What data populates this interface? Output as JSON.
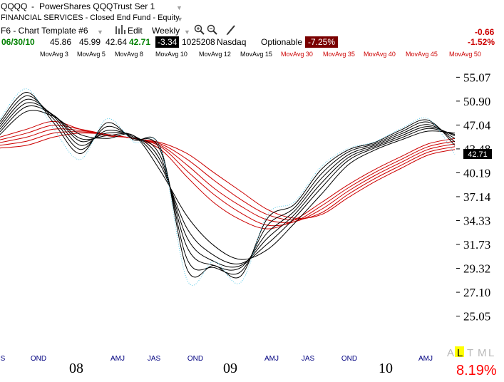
{
  "header": {
    "symbol": "QQQQ",
    "name_sep": "-",
    "name": "PowerShares QQQTrust Ser 1",
    "sector": "FINANCIAL SERVICES - Closed End Fund - Equity",
    "template": "F6 - Chart Template #6",
    "edit_label": "Edit",
    "period_label": "Weekly",
    "date": "06/30/10",
    "open": "45.86",
    "high": "45.99",
    "low": "42.64",
    "close": "42.71",
    "change": "-3.34",
    "volume": "1025208",
    "exchange": "Nasdaq",
    "optionable": "Optionable",
    "pct_badge": "-7.25%",
    "net_change": "-0.66",
    "net_pct": "-1.52%"
  },
  "moving_averages": [
    {
      "label": "MovAvg 3",
      "color": "#000000"
    },
    {
      "label": "MovAvg 5",
      "color": "#000000"
    },
    {
      "label": "MovAvg 8",
      "color": "#000000"
    },
    {
      "label": "MovAvg 10",
      "color": "#000000"
    },
    {
      "label": "MovAvg 12",
      "color": "#000000"
    },
    {
      "label": "MovAvg 15",
      "color": "#000000"
    },
    {
      "label": "MovAvg 30",
      "color": "#cc0000"
    },
    {
      "label": "MovAvg 35",
      "color": "#cc0000"
    },
    {
      "label": "MovAvg 40",
      "color": "#cc0000"
    },
    {
      "label": "MovAvg 45",
      "color": "#cc0000"
    },
    {
      "label": "MovAvg 50",
      "color": "#cc0000"
    }
  ],
  "footer": {
    "letters": [
      "A",
      "L",
      "T",
      "M",
      "L"
    ],
    "highlight_index": 1,
    "percent": "8.19%"
  },
  "chart_data": {
    "type": "line",
    "price_label": "42.71",
    "y_ticks": [
      "55.07",
      "50.90",
      "47.04",
      "43.48",
      "40.19",
      "37.14",
      "34.33",
      "31.73",
      "29.32",
      "27.10",
      "25.05"
    ],
    "y_scale": "log",
    "ylim": [
      24.1,
      57.5
    ],
    "x_ticks": [
      "S",
      "OND",
      "AMJ",
      "JAS",
      "OND",
      "AMJ",
      "JAS",
      "OND",
      "AMJ"
    ],
    "x_years": [
      "08",
      "09",
      "10"
    ],
    "x": [
      "2007-09",
      "2007-11",
      "2008-01",
      "2008-03",
      "2008-05",
      "2008-07",
      "2008-09",
      "2008-11",
      "2009-01",
      "2009-03",
      "2009-05",
      "2009-07",
      "2009-09",
      "2009-11",
      "2010-01",
      "2010-03",
      "2010-05",
      "2010-06"
    ],
    "price": [
      48.0,
      53.0,
      46.5,
      42.0,
      48.0,
      44.5,
      43.5,
      28.2,
      30.0,
      28.0,
      35.0,
      36.5,
      41.0,
      43.5,
      44.5,
      46.5,
      48.0,
      42.71
    ],
    "series": [
      {
        "name": "MovAvg 3",
        "values": [
          47.6,
          52.4,
          47.4,
          42.8,
          47.4,
          44.8,
          43.6,
          29.2,
          29.6,
          28.6,
          34.6,
          36.2,
          40.6,
          43.3,
          44.4,
          46.3,
          47.8,
          44.0
        ]
      },
      {
        "name": "MovAvg 5",
        "values": [
          47.2,
          51.8,
          48.0,
          43.4,
          46.8,
          45.0,
          43.2,
          30.2,
          29.4,
          29.0,
          33.8,
          35.8,
          40.0,
          43.0,
          44.2,
          46.0,
          47.5,
          44.5
        ]
      },
      {
        "name": "MovAvg 8",
        "values": [
          46.8,
          51.2,
          48.4,
          44.0,
          46.2,
          45.2,
          42.4,
          31.4,
          29.6,
          29.4,
          33.0,
          35.4,
          39.4,
          42.6,
          44.0,
          45.7,
          47.1,
          45.0
        ]
      },
      {
        "name": "MovAvg 10",
        "values": [
          46.4,
          50.6,
          48.6,
          44.6,
          45.8,
          45.4,
          41.8,
          32.4,
          30.0,
          29.6,
          32.4,
          35.0,
          38.8,
          42.2,
          43.8,
          45.4,
          46.8,
          45.4
        ]
      },
      {
        "name": "MovAvg 12",
        "values": [
          46.0,
          50.0,
          48.6,
          45.0,
          45.4,
          45.4,
          41.2,
          33.4,
          30.6,
          29.8,
          31.8,
          34.6,
          38.2,
          41.8,
          43.6,
          45.1,
          46.5,
          45.6
        ]
      },
      {
        "name": "MovAvg 15",
        "values": [
          45.6,
          49.2,
          48.4,
          45.6,
          45.0,
          45.4,
          40.4,
          34.8,
          31.6,
          30.2,
          31.2,
          34.0,
          37.4,
          41.2,
          43.3,
          44.8,
          46.1,
          45.8
        ]
      },
      {
        "name": "MovAvg 30",
        "values": [
          45.2,
          46.4,
          47.6,
          46.4,
          45.4,
          45.0,
          43.4,
          39.6,
          36.4,
          34.4,
          33.4,
          34.4,
          36.4,
          38.6,
          40.6,
          42.4,
          44.2,
          45.0
        ]
      },
      {
        "name": "MovAvg 35",
        "values": [
          44.8,
          45.8,
          47.0,
          46.4,
          45.6,
          45.0,
          43.8,
          40.4,
          37.4,
          35.2,
          33.8,
          34.2,
          36.0,
          38.2,
          40.2,
          42.0,
          43.8,
          44.6
        ]
      },
      {
        "name": "MovAvg 40",
        "values": [
          44.4,
          45.2,
          46.4,
          46.2,
          45.6,
          45.0,
          44.0,
          41.2,
          38.2,
          36.0,
          34.4,
          34.2,
          35.6,
          37.8,
          39.8,
          41.6,
          43.4,
          44.2
        ]
      },
      {
        "name": "MovAvg 45",
        "values": [
          44.0,
          44.6,
          45.8,
          46.0,
          45.6,
          45.0,
          44.2,
          42.0,
          39.2,
          36.8,
          35.0,
          34.4,
          35.2,
          37.4,
          39.4,
          41.2,
          43.0,
          43.8
        ]
      },
      {
        "name": "MovAvg 50",
        "values": [
          43.6,
          44.0,
          45.2,
          45.8,
          45.6,
          45.0,
          44.4,
          42.8,
          40.2,
          37.8,
          35.6,
          34.6,
          35.0,
          37.0,
          39.0,
          40.8,
          42.6,
          43.4
        ]
      }
    ],
    "grid": false,
    "legend": "top"
  }
}
